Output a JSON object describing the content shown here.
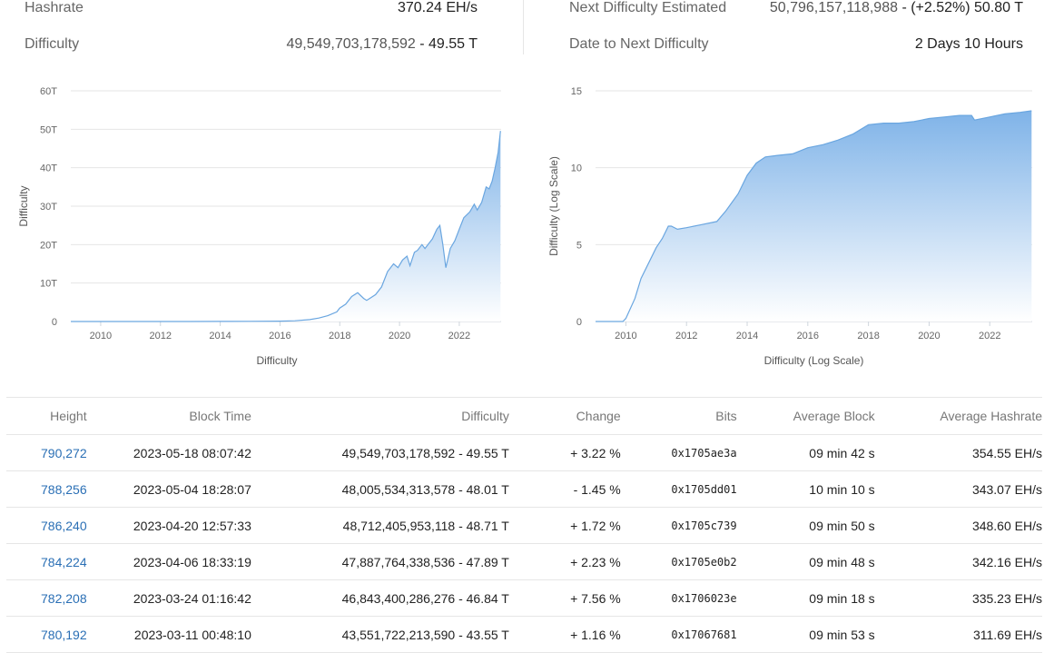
{
  "stats_left": {
    "hashrate_label": "Hashrate",
    "hashrate_value": "370.24 EH/s",
    "difficulty_label": "Difficulty",
    "difficulty_raw": "49,549,703,178,592",
    "difficulty_sep": " - ",
    "difficulty_short": "49.55 T"
  },
  "stats_right": {
    "next_label": "Next Difficulty Estimated",
    "next_raw": "50,796,157,118,988",
    "next_change": " - (+2.52%) ",
    "next_short": "50.80 T",
    "date_label": "Date to Next Difficulty",
    "date_value": "2 Days 10 Hours"
  },
  "colors": {
    "area_top": "#7fb3e8",
    "area_bottom": "#ffffff",
    "line": "#6aa6e0",
    "positive": "#2e8b2e",
    "negative": "#d23c3c",
    "link": "#2a6fb5"
  },
  "chart_data": [
    {
      "type": "area",
      "xlabel": "Difficulty",
      "ylabel": "Difficulty",
      "x_ticks": [
        "2010",
        "2012",
        "2014",
        "2016",
        "2018",
        "2020",
        "2022"
      ],
      "y_ticks": [
        "0",
        "10T",
        "20T",
        "30T",
        "40T",
        "50T",
        "60T"
      ],
      "xlim": [
        2009.0,
        2023.4
      ],
      "ylim": [
        0,
        60
      ],
      "y_unit": "T",
      "grid": true,
      "series": [
        {
          "x": [
            2009.0,
            2013.0,
            2014.0,
            2015.0,
            2016.0,
            2016.5,
            2017.0,
            2017.3,
            2017.6,
            2017.9,
            2018.0,
            2018.2,
            2018.4,
            2018.6,
            2018.8,
            2018.9,
            2019.0,
            2019.2,
            2019.4,
            2019.6,
            2019.8,
            2019.95,
            2020.1,
            2020.25,
            2020.35,
            2020.5,
            2020.6,
            2020.75,
            2020.85,
            2021.0,
            2021.1,
            2021.25,
            2021.35,
            2021.45,
            2021.55,
            2021.7,
            2021.85,
            2022.0,
            2022.15,
            2022.35,
            2022.5,
            2022.6,
            2022.75,
            2022.9,
            2023.0,
            2023.1,
            2023.2,
            2023.3,
            2023.38
          ],
          "values": [
            0,
            0.01,
            0.02,
            0.05,
            0.1,
            0.2,
            0.5,
            0.9,
            1.5,
            2.5,
            3.5,
            4.5,
            6.5,
            7.5,
            6.0,
            5.5,
            6.0,
            7.0,
            9.0,
            13.0,
            15.0,
            14.0,
            16.0,
            17.0,
            14.5,
            18.0,
            18.5,
            20.0,
            19.0,
            20.5,
            21.5,
            24.0,
            25.0,
            20.0,
            14.0,
            19.0,
            21.0,
            24.0,
            27.0,
            28.5,
            30.5,
            29.0,
            31.0,
            35.0,
            34.5,
            36.5,
            40.0,
            44.0,
            49.55
          ]
        }
      ]
    },
    {
      "type": "area",
      "xlabel": "Difficulty (Log Scale)",
      "ylabel": "Difficulty (Log Scale)",
      "x_ticks": [
        "2010",
        "2012",
        "2014",
        "2016",
        "2018",
        "2020",
        "2022"
      ],
      "y_ticks": [
        "0",
        "5",
        "10",
        "15"
      ],
      "xlim": [
        2009.0,
        2023.4
      ],
      "ylim": [
        0,
        15
      ],
      "grid": true,
      "series": [
        {
          "x": [
            2009.0,
            2009.9,
            2010.0,
            2010.3,
            2010.5,
            2010.8,
            2011.0,
            2011.2,
            2011.4,
            2011.5,
            2011.7,
            2012.0,
            2012.5,
            2013.0,
            2013.3,
            2013.7,
            2014.0,
            2014.3,
            2014.6,
            2015.0,
            2015.5,
            2016.0,
            2016.5,
            2017.0,
            2017.5,
            2018.0,
            2018.5,
            2019.0,
            2019.5,
            2020.0,
            2020.5,
            2021.0,
            2021.4,
            2021.5,
            2022.0,
            2022.5,
            2023.0,
            2023.38
          ],
          "values": [
            0,
            0,
            0.2,
            1.5,
            2.8,
            4.0,
            4.8,
            5.4,
            6.2,
            6.2,
            6.0,
            6.1,
            6.3,
            6.5,
            7.2,
            8.3,
            9.5,
            10.3,
            10.7,
            10.8,
            10.9,
            11.3,
            11.5,
            11.8,
            12.2,
            12.8,
            12.9,
            12.9,
            13.0,
            13.2,
            13.3,
            13.4,
            13.4,
            13.1,
            13.3,
            13.5,
            13.6,
            13.7
          ]
        }
      ]
    }
  ],
  "table": {
    "headers": [
      "Height",
      "Block Time",
      "Difficulty",
      "Change",
      "Bits",
      "Average Block",
      "Average Hashrate"
    ],
    "rows": [
      {
        "height": "790,272",
        "time": "2023-05-18 08:07:42",
        "difficulty": "49,549,703,178,592 - 49.55 T",
        "change": "+ 3.22 %",
        "dir": "pos",
        "bits": "0x1705ae3a",
        "avg_block": "09 min 42 s",
        "avg_hash": "354.55 EH/s"
      },
      {
        "height": "788,256",
        "time": "2023-05-04 18:28:07",
        "difficulty": "48,005,534,313,578 - 48.01 T",
        "change": "- 1.45 %",
        "dir": "neg",
        "bits": "0x1705dd01",
        "avg_block": "10 min 10 s",
        "avg_hash": "343.07 EH/s"
      },
      {
        "height": "786,240",
        "time": "2023-04-20 12:57:33",
        "difficulty": "48,712,405,953,118 - 48.71 T",
        "change": "+ 1.72 %",
        "dir": "pos",
        "bits": "0x1705c739",
        "avg_block": "09 min 50 s",
        "avg_hash": "348.60 EH/s"
      },
      {
        "height": "784,224",
        "time": "2023-04-06 18:33:19",
        "difficulty": "47,887,764,338,536 - 47.89 T",
        "change": "+ 2.23 %",
        "dir": "pos",
        "bits": "0x1705e0b2",
        "avg_block": "09 min 48 s",
        "avg_hash": "342.16 EH/s"
      },
      {
        "height": "782,208",
        "time": "2023-03-24 01:16:42",
        "difficulty": "46,843,400,286,276 - 46.84 T",
        "change": "+ 7.56 %",
        "dir": "pos",
        "bits": "0x1706023e",
        "avg_block": "09 min 18 s",
        "avg_hash": "335.23 EH/s"
      },
      {
        "height": "780,192",
        "time": "2023-03-11 00:48:10",
        "difficulty": "43,551,722,213,590 - 43.55 T",
        "change": "+ 1.16 %",
        "dir": "pos",
        "bits": "0x17067681",
        "avg_block": "09 min 53 s",
        "avg_hash": "311.69 EH/s"
      }
    ]
  }
}
